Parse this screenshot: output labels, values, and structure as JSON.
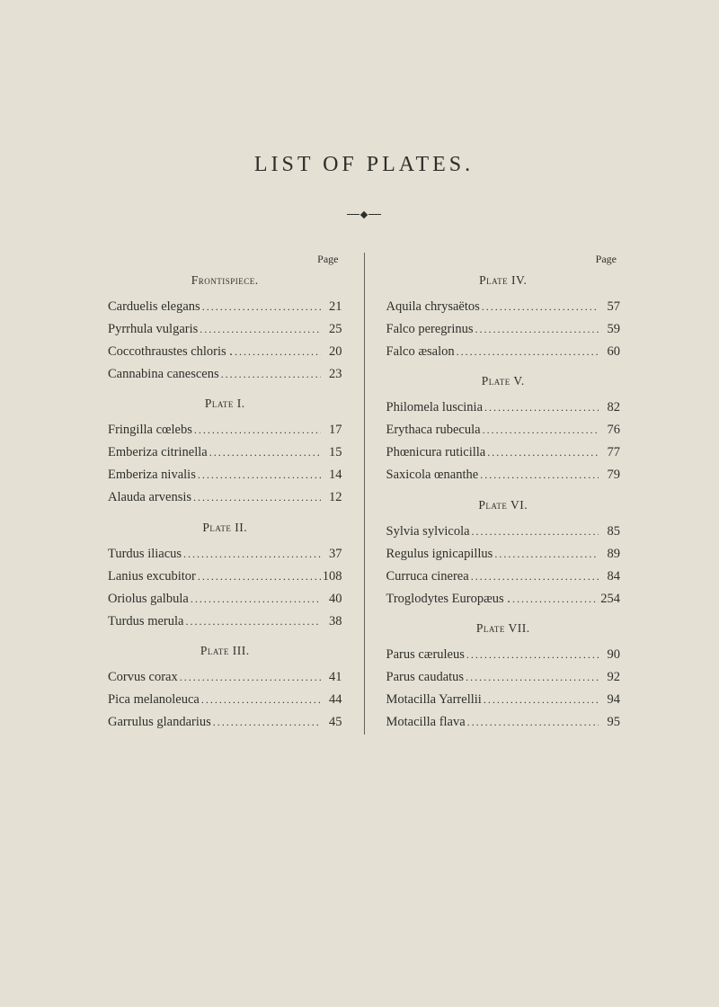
{
  "title": "LIST OF PLATES.",
  "pageWord": "Page",
  "columns": {
    "left": [
      {
        "type": "section",
        "text": "Frontispiece.",
        "first": true
      },
      {
        "type": "entry",
        "label": "Carduelis elegans",
        "page": "21"
      },
      {
        "type": "entry",
        "label": "Pyrrhula vulgaris",
        "page": "25"
      },
      {
        "type": "entry",
        "label": "Coccothraustes chloris .",
        "page": "20"
      },
      {
        "type": "entry",
        "label": "Cannabina canescens",
        "page": "23"
      },
      {
        "type": "section",
        "text": "Plate I."
      },
      {
        "type": "entry",
        "label": "Fringilla cœlebs",
        "page": "17"
      },
      {
        "type": "entry",
        "label": "Emberiza citrinella",
        "page": "15"
      },
      {
        "type": "entry",
        "label": "Emberiza nivalis",
        "page": "14"
      },
      {
        "type": "entry",
        "label": "Alauda arvensis",
        "page": "12"
      },
      {
        "type": "section",
        "text": "Plate II."
      },
      {
        "type": "entry",
        "label": "Turdus iliacus",
        "page": "37"
      },
      {
        "type": "entry",
        "label": "Lanius excubitor",
        "page": "108"
      },
      {
        "type": "entry",
        "label": "Oriolus galbula",
        "page": "40"
      },
      {
        "type": "entry",
        "label": "Turdus merula",
        "page": "38"
      },
      {
        "type": "section",
        "text": "Plate III."
      },
      {
        "type": "entry",
        "label": "Corvus corax",
        "page": "41"
      },
      {
        "type": "entry",
        "label": "Pica melanoleuca",
        "page": "44"
      },
      {
        "type": "entry",
        "label": "Garrulus glandarius",
        "page": "45"
      }
    ],
    "right": [
      {
        "type": "section",
        "text": "Plate IV.",
        "first": true
      },
      {
        "type": "entry",
        "label": "Aquila chrysaëtos",
        "page": "57"
      },
      {
        "type": "entry",
        "label": "Falco peregrinus",
        "page": "59"
      },
      {
        "type": "entry",
        "label": "Falco æsalon",
        "page": "60"
      },
      {
        "type": "section",
        "text": "Plate V."
      },
      {
        "type": "entry",
        "label": "Philomela luscinia",
        "page": "82"
      },
      {
        "type": "entry",
        "label": "Erythaca rubecula",
        "page": "76"
      },
      {
        "type": "entry",
        "label": "Phœnicura ruticilla",
        "page": "77"
      },
      {
        "type": "entry",
        "label": "Saxicola œnanthe",
        "page": "79"
      },
      {
        "type": "section",
        "text": "Plate VI."
      },
      {
        "type": "entry",
        "label": "Sylvia sylvicola",
        "page": "85"
      },
      {
        "type": "entry",
        "label": "Regulus ignicapillus",
        "page": "89"
      },
      {
        "type": "entry",
        "label": "Curruca cinerea",
        "page": "84"
      },
      {
        "type": "entry",
        "label": "Troglodytes Europæus .",
        "page": "254"
      },
      {
        "type": "section",
        "text": "Plate VII."
      },
      {
        "type": "entry",
        "label": "Parus cæruleus",
        "page": "90"
      },
      {
        "type": "entry",
        "label": "Parus caudatus",
        "page": "92"
      },
      {
        "type": "entry",
        "label": "Motacilla Yarrellii",
        "page": "94"
      },
      {
        "type": "entry",
        "label": "Motacilla flava",
        "page": "95"
      }
    ]
  }
}
